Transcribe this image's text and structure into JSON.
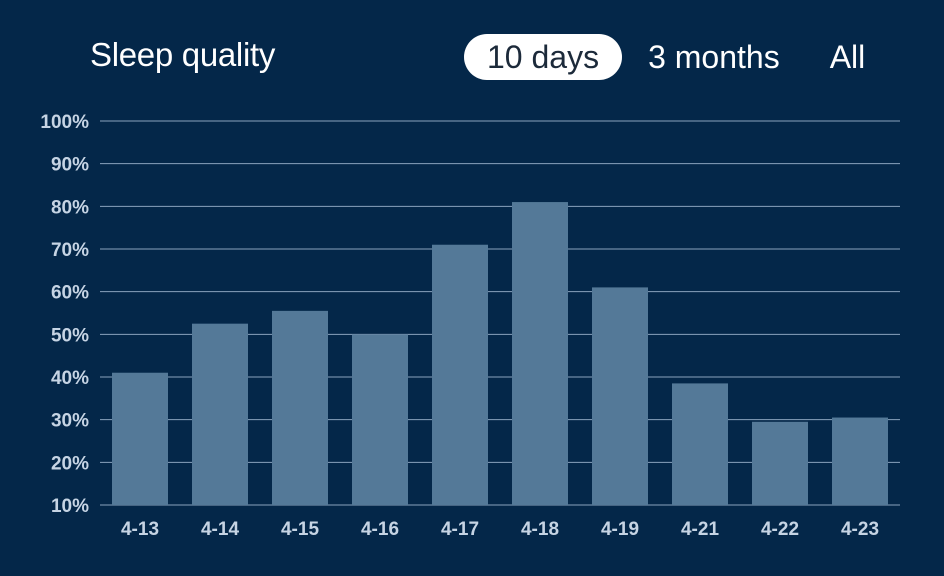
{
  "header": {
    "title": "Sleep quality",
    "tabs": [
      {
        "label": "10 days",
        "active": true
      },
      {
        "label": "3 months",
        "active": false
      },
      {
        "label": "All",
        "active": false
      }
    ]
  },
  "colors": {
    "background": "#042749",
    "bar": "#547998",
    "grid": "#8aa3bd",
    "tick_text": "#c6d4e4"
  },
  "chart_data": {
    "type": "bar",
    "title": "Sleep quality",
    "xlabel": "",
    "ylabel": "",
    "categories": [
      "4-13",
      "4-14",
      "4-15",
      "4-16",
      "4-17",
      "4-18",
      "4-19",
      "4-21",
      "4-22",
      "4-23"
    ],
    "values": [
      41,
      52.5,
      55.5,
      50,
      71,
      81,
      61,
      38.5,
      29.5,
      30.5
    ],
    "ylim": [
      10,
      100
    ],
    "yticks": [
      "10%",
      "20%",
      "30%",
      "40%",
      "50%",
      "60%",
      "70%",
      "80%",
      "90%",
      "100%"
    ],
    "grid": true,
    "legend": "none"
  }
}
